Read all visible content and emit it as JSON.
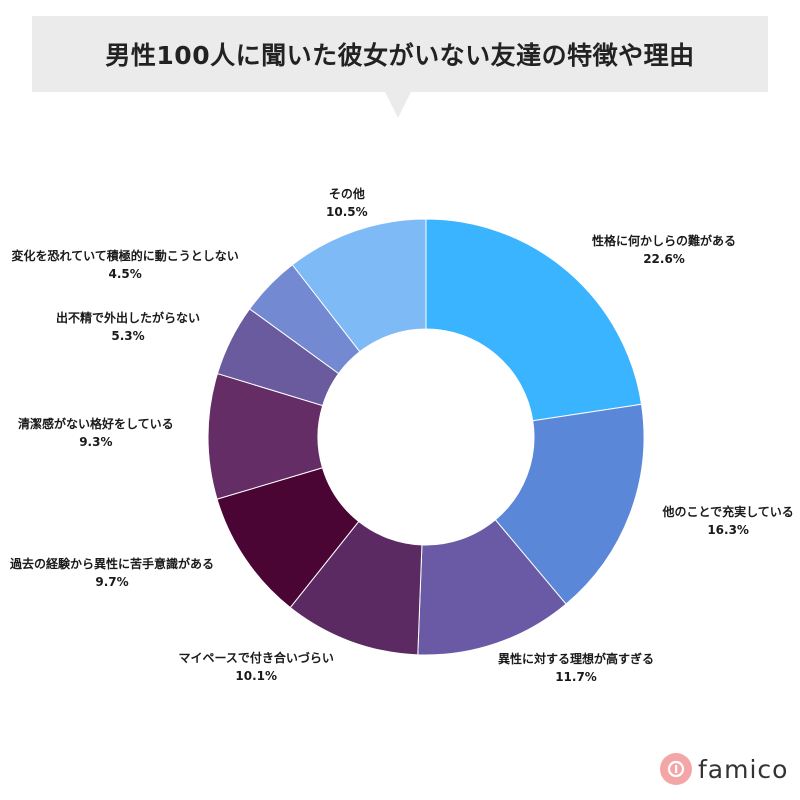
{
  "title": "男性100人に聞いた彼女がいない友達の特徴や理由",
  "brand": {
    "name": "famico",
    "icon": "famico-logo-icon",
    "icon_color": "#f4a6a6"
  },
  "chart_data": {
    "type": "pie",
    "donut": true,
    "title": "男性100人に聞いた彼女がいない友達の特徴や理由",
    "categories": [
      "性格に何かしらの難がある",
      "他のことで充実している",
      "異性に対する理想が高すぎる",
      "マイペースで付き合いづらい",
      "過去の経験から異性に苦手意識がある",
      "清潔感がない格好をしている",
      "出不精で外出したがらない",
      "変化を恐れていて積極的に動こうとしない",
      "その他"
    ],
    "values": [
      22.6,
      16.3,
      11.7,
      10.1,
      9.7,
      9.3,
      5.3,
      4.5,
      10.5
    ],
    "value_labels": [
      "22.6%",
      "16.3%",
      "11.7%",
      "10.1%",
      "9.7%",
      "9.3%",
      "5.3%",
      "4.5%",
      "10.5%"
    ],
    "colors": [
      "#3bb4ff",
      "#5b87d8",
      "#6a5aa5",
      "#5c2a62",
      "#4b0535",
      "#652d66",
      "#6a5a9e",
      "#7389d2",
      "#7dbaf6"
    ],
    "start": "top (12 o'clock)",
    "direction": "clockwise",
    "legend": "none"
  }
}
